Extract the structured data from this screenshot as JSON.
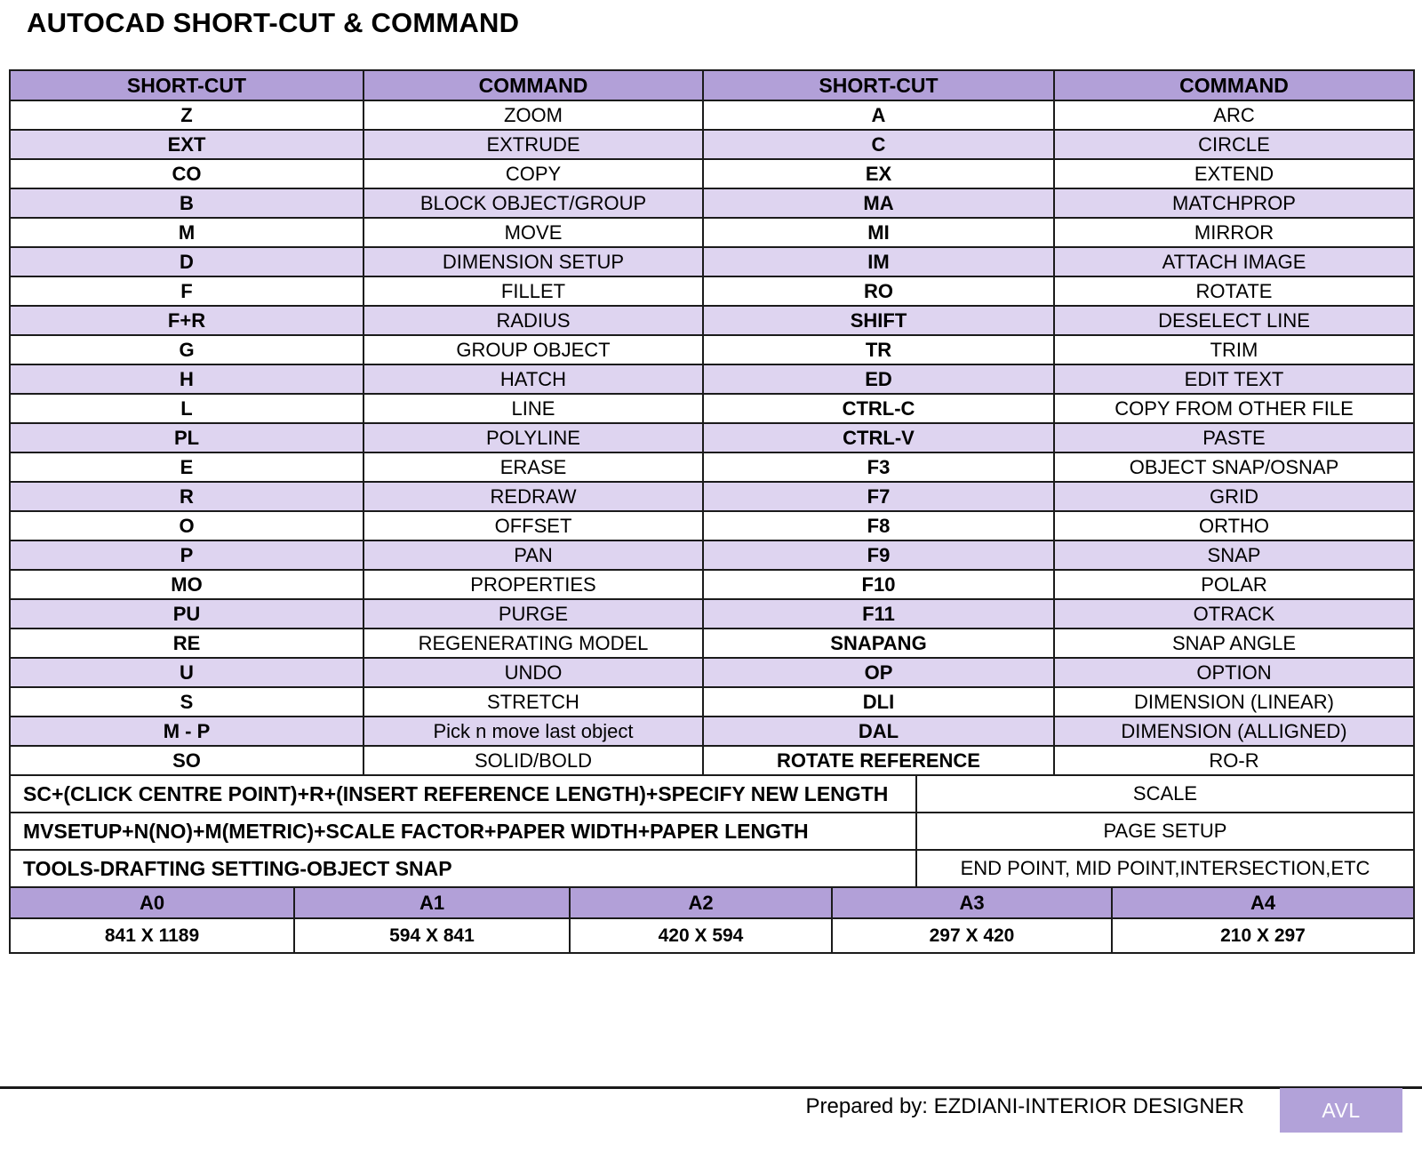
{
  "title": "AUTOCAD SHORT-CUT & COMMAND",
  "colors": {
    "header_purple": "#b2a0d8",
    "row_purple": "#ded4f0",
    "badge_purple": "#b2a2d9",
    "border": "#1b1b1b"
  },
  "shortcut_table": {
    "headers": [
      "SHORT-CUT",
      "COMMAND",
      "SHORT-CUT",
      "COMMAND"
    ],
    "rows": [
      [
        "Z",
        "ZOOM",
        "A",
        "ARC"
      ],
      [
        "EXT",
        "EXTRUDE",
        "C",
        "CIRCLE"
      ],
      [
        "CO",
        "COPY",
        "EX",
        "EXTEND"
      ],
      [
        "B",
        "BLOCK OBJECT/GROUP",
        "MA",
        "MATCHPROP"
      ],
      [
        "M",
        "MOVE",
        "MI",
        "MIRROR"
      ],
      [
        "D",
        "DIMENSION SETUP",
        "IM",
        "ATTACH IMAGE"
      ],
      [
        "F",
        "FILLET",
        "RO",
        "ROTATE"
      ],
      [
        "F+R",
        "RADIUS",
        "SHIFT",
        "DESELECT LINE"
      ],
      [
        "G",
        "GROUP OBJECT",
        "TR",
        "TRIM"
      ],
      [
        "H",
        "HATCH",
        "ED",
        "EDIT TEXT"
      ],
      [
        "L",
        "LINE",
        "CTRL-C",
        "COPY FROM OTHER FILE"
      ],
      [
        "PL",
        "POLYLINE",
        "CTRL-V",
        "PASTE"
      ],
      [
        "E",
        "ERASE",
        "F3",
        "OBJECT SNAP/OSNAP"
      ],
      [
        "R",
        "REDRAW",
        "F7",
        "GRID"
      ],
      [
        "O",
        "OFFSET",
        "F8",
        "ORTHO"
      ],
      [
        "P",
        "PAN",
        "F9",
        "SNAP"
      ],
      [
        "MO",
        "PROPERTIES",
        "F10",
        "POLAR"
      ],
      [
        "PU",
        "PURGE",
        "F11",
        "OTRACK"
      ],
      [
        "RE",
        "REGENERATING MODEL",
        "SNAPANG",
        "SNAP ANGLE"
      ],
      [
        "U",
        "UNDO",
        "OP",
        "OPTION"
      ],
      [
        "S",
        "STRETCH",
        "DLI",
        "DIMENSION (LINEAR)"
      ],
      [
        "M - P",
        "Pick n move last object",
        "DAL",
        "DIMENSION (ALLIGNED)"
      ],
      [
        "SO",
        "SOLID/BOLD",
        "ROTATE REFERENCE",
        "RO-R"
      ]
    ],
    "wide_rows": [
      {
        "procedure": "SC+(CLICK CENTRE POINT)+R+(INSERT REFERENCE LENGTH)+SPECIFY NEW LENGTH",
        "command": "SCALE"
      },
      {
        "procedure": "MVSETUP+N(NO)+M(METRIC)+SCALE FACTOR+PAPER WIDTH+PAPER LENGTH",
        "command": "PAGE SETUP"
      },
      {
        "procedure": "TOOLS-DRAFTING SETTING-OBJECT SNAP",
        "command": "END POINT, MID POINT,INTERSECTION,ETC"
      }
    ]
  },
  "paper_sizes": {
    "headers": [
      "A0",
      "A1",
      "A2",
      "A3",
      "A4"
    ],
    "values": [
      "841 X 1189",
      "594 X 841",
      "420 X 594",
      "297 X 420",
      "210 X 297"
    ]
  },
  "footer": {
    "prepared_by": "Prepared by: EZDIANI-INTERIOR DESIGNER",
    "badge_label": "AVL"
  }
}
